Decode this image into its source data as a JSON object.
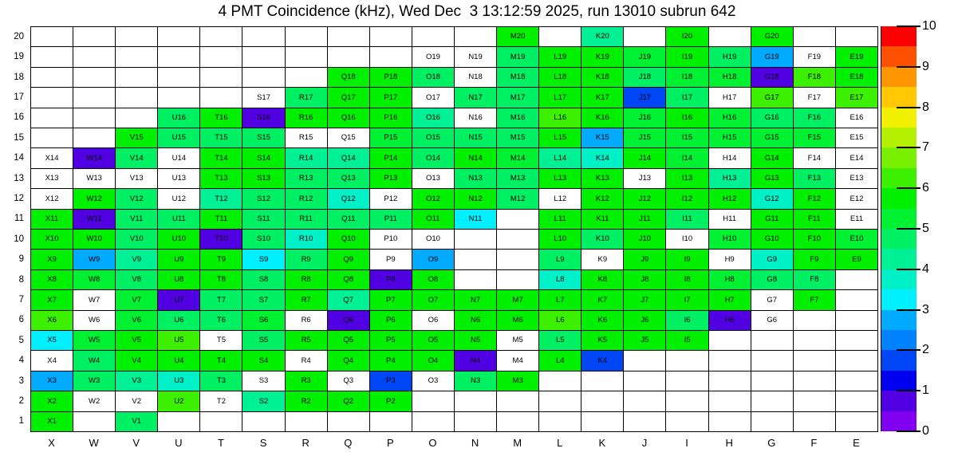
{
  "title": "4 PMT Coincidence (kHz), Wed Dec  3 13:12:59 2025, run 13010 subrun 642",
  "chart_data": {
    "type": "heatmap",
    "title": "4 PMT Coincidence (kHz), Wed Dec  3 13:12:59 2025, run 13010 subrun 642",
    "unit": "kHz",
    "columns": [
      "X",
      "W",
      "V",
      "U",
      "T",
      "S",
      "R",
      "Q",
      "P",
      "O",
      "N",
      "M",
      "L",
      "K",
      "J",
      "I",
      "H",
      "G",
      "F",
      "E"
    ],
    "rows": [
      20,
      19,
      18,
      17,
      16,
      15,
      14,
      13,
      12,
      11,
      10,
      9,
      8,
      7,
      6,
      5,
      4,
      3,
      2,
      1
    ],
    "zlim": [
      0,
      10
    ],
    "legend_note": "cells: number = value in kHz (colored), w = present but no rate (white with label), null = no channel (blank)",
    "palette": [
      "#8200F0",
      "#5000E1",
      "#0000F0",
      "#0046F5",
      "#0082FF",
      "#00AAFF",
      "#00F0FF",
      "#00F0C8",
      "#00F096",
      "#00F064",
      "#00F032",
      "#00F000",
      "#3CF000",
      "#78F000",
      "#B4F000",
      "#F0F000",
      "#FFC800",
      "#FF9600",
      "#FF5000",
      "#FF0000"
    ],
    "colorbar_ticks": [
      "10",
      "9",
      "8",
      "7",
      "6",
      "5",
      "4",
      "3",
      "2",
      "1",
      "0"
    ],
    "cells": [
      [
        null,
        null,
        null,
        null,
        null,
        null,
        null,
        null,
        null,
        null,
        null,
        5.5,
        null,
        4.2,
        null,
        5.5,
        null,
        5.5,
        null,
        null
      ],
      [
        null,
        null,
        null,
        null,
        null,
        null,
        null,
        null,
        null,
        "w",
        "w",
        4.7,
        5.5,
        5.5,
        5.2,
        5.5,
        4.7,
        2.7,
        "w",
        5.7
      ],
      [
        null,
        null,
        null,
        null,
        null,
        null,
        null,
        5.5,
        5.5,
        4.8,
        "w",
        4.7,
        5.5,
        5.5,
        4.7,
        5.3,
        5.2,
        0.7,
        6.2,
        5.6
      ],
      [
        null,
        null,
        null,
        null,
        null,
        "w",
        4.9,
        5.5,
        5.5,
        "w",
        4.7,
        4.7,
        5.5,
        5.5,
        1.8,
        4.9,
        "w",
        6.0,
        "w",
        6.0
      ],
      [
        null,
        null,
        null,
        4.7,
        5.5,
        0.6,
        5.7,
        5.5,
        5.5,
        4.2,
        "w",
        4.7,
        6.2,
        5.5,
        5.2,
        5.5,
        5.2,
        4.7,
        4.8,
        "w"
      ],
      [
        null,
        null,
        5.7,
        4.9,
        4.9,
        4.9,
        "w",
        "w",
        5.3,
        4.8,
        4.7,
        4.7,
        5.5,
        2.7,
        5.3,
        5.3,
        5.3,
        5.3,
        5.0,
        "w"
      ],
      [
        "w",
        0.6,
        4.7,
        "w",
        5.6,
        5.5,
        4.4,
        4.3,
        5.5,
        4.7,
        5.5,
        5.4,
        4.3,
        3.6,
        5.5,
        5.4,
        "w",
        5.6,
        "w",
        "w"
      ],
      [
        "w",
        "w",
        "w",
        "w",
        5.6,
        5.5,
        4.8,
        4.9,
        5.6,
        "w",
        4.5,
        4.5,
        5.6,
        5.6,
        "w",
        5.5,
        4.4,
        5.6,
        4.7,
        "w"
      ],
      [
        "w",
        5.7,
        4.9,
        "w",
        4.4,
        4.8,
        4.8,
        3.6,
        "w",
        5.7,
        5.6,
        4.7,
        "w",
        5.5,
        5.6,
        5.5,
        5.5,
        3.5,
        5.5,
        "w"
      ],
      [
        5.7,
        0.6,
        4.8,
        4.8,
        5.6,
        4.9,
        4.8,
        4.8,
        4.9,
        5.7,
        3.3,
        null,
        5.6,
        5.6,
        5.6,
        4.7,
        "w",
        5.6,
        5.5,
        "w"
      ],
      [
        5.7,
        5.5,
        4.8,
        5.5,
        0.6,
        4.8,
        3.7,
        5.5,
        "w",
        "w",
        null,
        null,
        5.6,
        4.8,
        5.6,
        "w",
        5.4,
        5.5,
        5.6,
        5.4
      ],
      [
        5.7,
        2.6,
        4.4,
        5.5,
        5.6,
        3.2,
        4.8,
        5.6,
        "w",
        2.7,
        null,
        null,
        4.6,
        "w",
        5.7,
        5.5,
        "w",
        3.7,
        5.6,
        5.5
      ],
      [
        5.7,
        5.3,
        4.7,
        5.5,
        5.5,
        4.8,
        5.5,
        5.5,
        0.6,
        5.6,
        null,
        null,
        3.5,
        5.6,
        5.6,
        5.5,
        5.4,
        4.7,
        4.7,
        null
      ],
      [
        5.7,
        "w",
        5.3,
        0.6,
        4.5,
        4.7,
        5.5,
        4.4,
        5.5,
        5.6,
        5.6,
        5.6,
        5.6,
        5.5,
        5.6,
        5.5,
        5.6,
        "w",
        5.6,
        null
      ],
      [
        6.0,
        "w",
        5.3,
        4.7,
        4.6,
        5.4,
        "w",
        0.6,
        5.6,
        "w",
        5.7,
        5.6,
        6.1,
        5.6,
        5.7,
        4.7,
        0.6,
        "w",
        null,
        null
      ],
      [
        3.2,
        5.4,
        5.5,
        6.2,
        "w",
        4.7,
        5.5,
        5.5,
        5.5,
        5.5,
        5.6,
        "w",
        4.6,
        5.6,
        5.7,
        5.7,
        null,
        null,
        null,
        null
      ],
      [
        "w",
        4.7,
        5.8,
        5.6,
        5.5,
        5.5,
        "w",
        5.5,
        5.6,
        5.5,
        0.6,
        "w",
        5.7,
        1.7,
        null,
        null,
        null,
        null,
        null,
        null
      ],
      [
        2.7,
        4.9,
        4.4,
        3.6,
        4.6,
        "w",
        5.6,
        "w",
        1.8,
        "w",
        4.6,
        5.6,
        null,
        null,
        null,
        null,
        null,
        null,
        null,
        null
      ],
      [
        5.8,
        "w",
        "w",
        6.1,
        "w",
        4.3,
        5.5,
        5.5,
        5.6,
        null,
        null,
        null,
        null,
        null,
        null,
        null,
        null,
        null,
        null,
        null
      ],
      [
        5.6,
        null,
        4.8,
        null,
        null,
        null,
        null,
        null,
        null,
        null,
        null,
        null,
        null,
        null,
        null,
        null,
        null,
        null,
        null,
        null
      ]
    ]
  }
}
